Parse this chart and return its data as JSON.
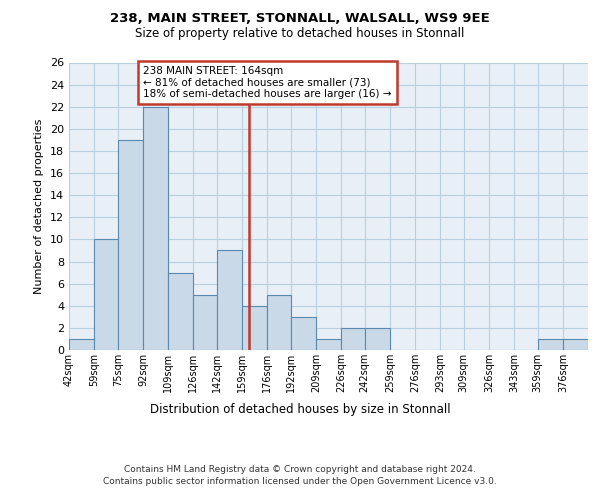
{
  "title1": "238, MAIN STREET, STONNALL, WALSALL, WS9 9EE",
  "title2": "Size of property relative to detached houses in Stonnall",
  "xlabel": "Distribution of detached houses by size in Stonnall",
  "ylabel": "Number of detached properties",
  "bin_labels": [
    "42sqm",
    "59sqm",
    "75sqm",
    "92sqm",
    "109sqm",
    "126sqm",
    "142sqm",
    "159sqm",
    "176sqm",
    "192sqm",
    "209sqm",
    "226sqm",
    "242sqm",
    "259sqm",
    "276sqm",
    "293sqm",
    "309sqm",
    "326sqm",
    "343sqm",
    "359sqm",
    "376sqm"
  ],
  "bin_edges": [
    42,
    59,
    75,
    92,
    109,
    126,
    142,
    159,
    176,
    192,
    209,
    226,
    242,
    259,
    276,
    293,
    309,
    326,
    343,
    359,
    376,
    393
  ],
  "bar_heights": [
    1,
    10,
    19,
    22,
    7,
    5,
    9,
    4,
    5,
    3,
    1,
    2,
    2,
    0,
    0,
    0,
    0,
    0,
    0,
    1,
    1
  ],
  "bar_color": "#c9d9e8",
  "bar_edge_color": "#5a8ab0",
  "property_size": 164,
  "vline_color": "#c0392b",
  "annotation_line1": "238 MAIN STREET: 164sqm",
  "annotation_line2": "← 81% of detached houses are smaller (73)",
  "annotation_line3": "18% of semi-detached houses are larger (16) →",
  "annotation_box_color": "#c0392b",
  "ylim": [
    0,
    26
  ],
  "yticks": [
    0,
    2,
    4,
    6,
    8,
    10,
    12,
    14,
    16,
    18,
    20,
    22,
    24,
    26
  ],
  "grid_color": "#b8cfe0",
  "background_color": "#e8eff7",
  "footer_line1": "Contains HM Land Registry data © Crown copyright and database right 2024.",
  "footer_line2": "Contains public sector information licensed under the Open Government Licence v3.0."
}
